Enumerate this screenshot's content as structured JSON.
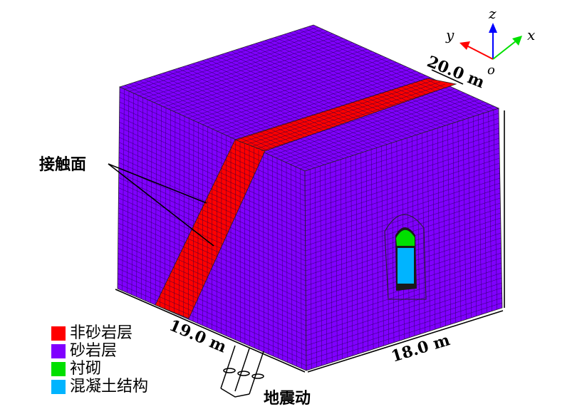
{
  "legend": [
    {
      "label": "非砂岩层",
      "color": "#ff0000"
    },
    {
      "label": "砂岩层",
      "color": "#8000ff"
    },
    {
      "label": "衬砌",
      "color": "#00e000"
    },
    {
      "label": "混凝土结构",
      "color": "#00b4ff"
    }
  ],
  "annotations": {
    "contact_surface": "接触面",
    "ground_motion": "地震动"
  },
  "dimensions": {
    "band_width": "20.0 m",
    "length_left": "19.0 m",
    "length_right": "18.0 m"
  },
  "axes": {
    "x": "x",
    "y": "y",
    "z": "z",
    "origin": "o",
    "colors": {
      "x": "#00e000",
      "y": "#ff0000",
      "z": "#0000ff"
    }
  }
}
